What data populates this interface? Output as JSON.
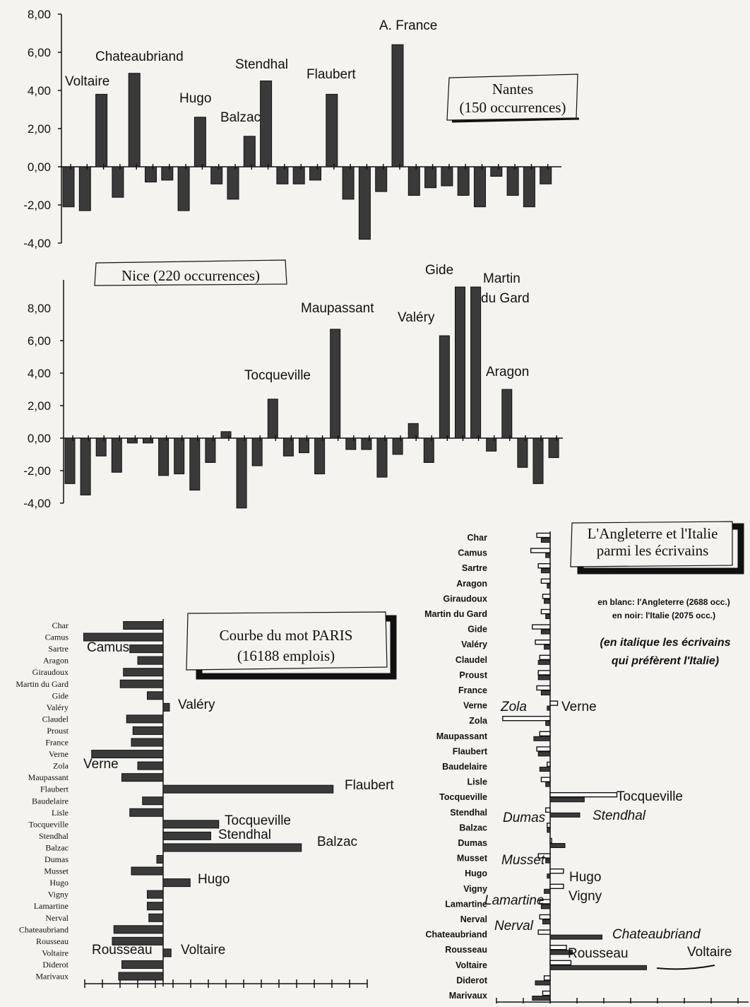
{
  "chart_data": [
    {
      "type": "bar",
      "y_tick_labels": [
        "8,00",
        "6,00",
        "4,00",
        "2,00",
        "0,00",
        "-2,00",
        "-4,00"
      ],
      "ylim": [
        -4,
        8
      ],
      "values": [
        -2.1,
        -2.3,
        3.8,
        -1.6,
        4.9,
        -0.8,
        -0.7,
        -2.3,
        2.6,
        -0.9,
        -1.7,
        1.6,
        4.5,
        -0.9,
        -0.9,
        -0.7,
        3.8,
        -1.7,
        -3.8,
        -1.3,
        6.4,
        -1.5,
        -1.1,
        -1.0,
        -1.5,
        -2.1,
        -0.5,
        -1.5,
        -2.1,
        -0.9
      ],
      "legend": {
        "line1": "Nantes",
        "line2": "(150 occurrences)"
      },
      "annotations": [
        {
          "name": "voltaire",
          "text": "Voltaire"
        },
        {
          "name": "chateaubriand",
          "text": "Chateaubriand"
        },
        {
          "name": "hugo",
          "text": "Hugo"
        },
        {
          "name": "balzac",
          "text": "Balzac"
        },
        {
          "name": "stendhal",
          "text": "Stendhal"
        },
        {
          "name": "flaubert",
          "text": "Flaubert"
        },
        {
          "name": "a-france",
          "text": "A. France"
        }
      ]
    },
    {
      "type": "bar",
      "y_tick_labels": [
        "8,00",
        "6,00",
        "4,00",
        "2,00",
        "0,00",
        "-2,00",
        "-4,00"
      ],
      "ylim": [
        -4,
        9
      ],
      "values": [
        -2.8,
        -3.5,
        -1.1,
        -2.1,
        -0.3,
        -0.3,
        -2.3,
        -2.2,
        -3.2,
        -1.5,
        0.4,
        -4.3,
        -1.7,
        2.4,
        -1.1,
        -0.9,
        -2.2,
        6.7,
        -0.7,
        -0.7,
        -2.4,
        -1.0,
        0.9,
        -1.5,
        6.3,
        9.3,
        9.3,
        -0.8,
        3.0,
        -1.8,
        -2.8,
        -1.2
      ],
      "legend": {
        "line1": "Nice (220 occurrences)"
      },
      "annotations": [
        {
          "name": "tocqueville",
          "text": "Tocqueville"
        },
        {
          "name": "maupassant",
          "text": "Maupassant"
        },
        {
          "name": "valery",
          "text": "Valéry"
        },
        {
          "name": "gide",
          "text": "Gide"
        },
        {
          "name": "martin1",
          "text": "Martin"
        },
        {
          "name": "martin2",
          "text": "du Gard"
        },
        {
          "name": "aragon",
          "text": "Aragon"
        }
      ]
    },
    {
      "type": "bar",
      "orientation": "horizontal",
      "categories": [
        "Char",
        "Camus",
        "Sartre",
        "Aragon",
        "Giraudoux",
        "Martin du Gard",
        "Gide",
        "Valéry",
        "Claudel",
        "Proust",
        "France",
        "Verne",
        "Zola",
        "Maupassant",
        "Flaubert",
        "Baudelaire",
        "Lisle",
        "Tocqueville",
        "Stendhal",
        "Balzac",
        "Dumas",
        "Musset",
        "Hugo",
        "Vigny",
        "Lamartine",
        "Nerval",
        "Chateaubriand",
        "Rousseau",
        "Voltaire",
        "Diderot",
        "Marivaux"
      ],
      "values": [
        -2.5,
        -5,
        -2.1,
        -1.6,
        -2.5,
        -2.7,
        -1,
        0.4,
        -2.3,
        -1.9,
        -2,
        -4.5,
        -1.6,
        -2.6,
        10.7,
        -1.3,
        -2.1,
        3.5,
        3,
        8.7,
        -0.4,
        -2,
        1.7,
        -1,
        -1,
        -0.9,
        -3.1,
        -3.2,
        0.5,
        -2.6,
        -2.8
      ],
      "legend": {
        "line1": "Courbe du mot PARIS",
        "line2": "(16188 emplois)"
      },
      "annotations": [
        {
          "name": "camus",
          "text": "Camus"
        },
        {
          "name": "valery",
          "text": "Valéry"
        },
        {
          "name": "verne",
          "text": "Verne"
        },
        {
          "name": "flaubert",
          "text": "Flaubert"
        },
        {
          "name": "tocqueville",
          "text": "Tocqueville"
        },
        {
          "name": "stendhal",
          "text": "Stendhal"
        },
        {
          "name": "balzac",
          "text": "Balzac"
        },
        {
          "name": "hugo",
          "text": "Hugo"
        },
        {
          "name": "rousseau",
          "text": "Rousseau"
        },
        {
          "name": "voltaire",
          "text": "Voltaire"
        }
      ]
    },
    {
      "type": "bar",
      "orientation": "horizontal",
      "categories": [
        "Char",
        "Camus",
        "Sartre",
        "Aragon",
        "Giraudoux",
        "Martin du Gard",
        "Gide",
        "Valéry",
        "Claudel",
        "Proust",
        "France",
        "Verne",
        "Zola",
        "Maupassant",
        "Flaubert",
        "Baudelaire",
        "Lisle",
        "Tocqueville",
        "Stendhal",
        "Balzac",
        "Dumas",
        "Musset",
        "Hugo",
        "Vigny",
        "Lamartine",
        "Nerval",
        "Chateaubriand",
        "Rousseau",
        "Voltaire",
        "Diderot",
        "Marivaux"
      ],
      "series": [
        {
          "name": "l'Angleterre",
          "values": [
            -0.9,
            -1.3,
            -0.8,
            -0.6,
            -0.5,
            -0.6,
            -1.2,
            -1.0,
            -0.7,
            -0.8,
            -0.9,
            0.5,
            -3.2,
            -0.7,
            -0.9,
            -0.2,
            -0.6,
            4.5,
            -0.3,
            -0.2,
            0.1,
            -0.8,
            0.9,
            0.9,
            -0.7,
            -0.7,
            -0.8,
            1.1,
            1.4,
            -0.4,
            -0.5
          ]
        },
        {
          "name": "l'Italie",
          "values": [
            -0.6,
            -0.3,
            -0.6,
            -0.2,
            -0.4,
            -0.3,
            -0.6,
            -0.4,
            -0.8,
            -0.8,
            -0.6,
            -0.2,
            -0.3,
            -1.1,
            -0.8,
            -0.7,
            -0.3,
            2.3,
            2.0,
            -0.2,
            1.0,
            -0.3,
            -0.2,
            -0.4,
            -0.6,
            -0.5,
            3.5,
            1.5,
            6.5,
            -1.0,
            -1.2
          ]
        }
      ],
      "legend": {
        "line1": "L'Angleterre et l'Italie",
        "line2": "parmi les écrivains"
      },
      "notes": {
        "white": "en blanc: l'Angleterre (2688 occ.)",
        "black": "en noir: l'Italie (2075 occ.)",
        "italic1": "(en italique les écrivains",
        "italic2": "qui préfèrent l'Italie)"
      },
      "annotations": [
        {
          "name": "zola",
          "text": "Zola",
          "italic": true
        },
        {
          "name": "verne",
          "text": "Verne",
          "italic": false
        },
        {
          "name": "tocqueville",
          "text": "Tocqueville",
          "italic": false
        },
        {
          "name": "stendhal",
          "text": "Stendhal",
          "italic": true
        },
        {
          "name": "dumas",
          "text": "Dumas",
          "italic": true
        },
        {
          "name": "musset",
          "text": "Musset",
          "italic": true
        },
        {
          "name": "hugo",
          "text": "Hugo",
          "italic": false
        },
        {
          "name": "vigny",
          "text": "Vigny",
          "italic": false
        },
        {
          "name": "lamartine",
          "text": "Lamartine",
          "italic": true
        },
        {
          "name": "nerval",
          "text": "Nerval",
          "italic": true
        },
        {
          "name": "chateaubriand",
          "text": "Chateaubriand",
          "italic": true
        },
        {
          "name": "rousseau",
          "text": "Rousseau",
          "italic": false
        },
        {
          "name": "voltaire",
          "text": "Voltaire",
          "italic": false
        }
      ]
    }
  ]
}
